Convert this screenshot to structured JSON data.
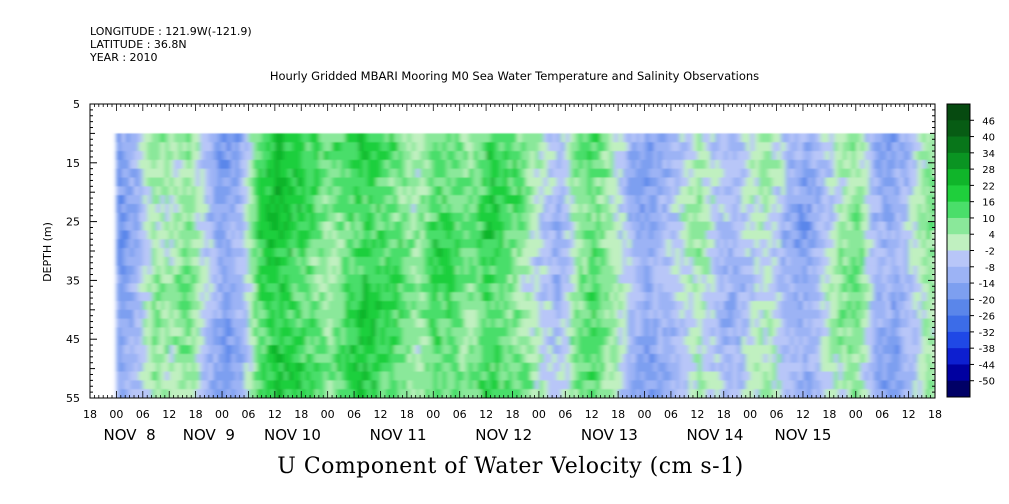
{
  "header": {
    "longitude": "LONGITUDE : 121.9W(-121.9)",
    "latitude": "LATITUDE : 36.8N",
    "year": "YEAR : 2010"
  },
  "chart_data": {
    "type": "heatmap",
    "title": "Hourly Gridded MBARI Mooring M0 Sea Water Temperature and Salinity Observations",
    "xlabel": "U Component of Water Velocity (cm s-1)",
    "ylabel": "DEPTH (m)",
    "ylim": [
      5,
      55
    ],
    "y_ticks": [
      5,
      15,
      25,
      35,
      45,
      55
    ],
    "y_tick_labels": [
      "5",
      "15",
      "25",
      "35",
      "45",
      "55"
    ],
    "data_depth_range": [
      10,
      55
    ],
    "x_hour_start": -6,
    "x_hour_end": 186,
    "x_hour_ticks": [
      "18",
      "00",
      "06",
      "12",
      "18",
      "00",
      "06",
      "12",
      "18",
      "00",
      "06",
      "12",
      "18",
      "00",
      "06",
      "12",
      "18",
      "00",
      "06",
      "12",
      "18",
      "00",
      "06",
      "12",
      "18",
      "00",
      "06",
      "12",
      "18",
      "00",
      "06",
      "12",
      "18"
    ],
    "x_day_labels": [
      "NOV  8",
      "NOV  9",
      "NOV 10",
      "NOV 11",
      "NOV 12",
      "NOV 13",
      "NOV 14",
      "NOV 15"
    ],
    "x_day_label_hours": [
      3,
      21,
      40,
      64,
      88,
      112,
      136,
      156
    ],
    "colorbar_levels": [
      -50,
      -44,
      -38,
      -32,
      -26,
      -20,
      -14,
      -8,
      -2,
      4,
      10,
      16,
      22,
      28,
      34,
      40,
      46
    ],
    "colorbar_labels": [
      "46",
      "40",
      "34",
      "28",
      "22",
      "16",
      "10",
      "4",
      "-2",
      "-8",
      "-14",
      "-20",
      "-26",
      "-32",
      "-38",
      "-44",
      "-50"
    ],
    "colorbar_colors": [
      "#000066",
      "#0000a0",
      "#0d1fd0",
      "#1f48e6",
      "#3c6ce8",
      "#5a86ea",
      "#7d9ff0",
      "#9cb3f5",
      "#b8c6f8",
      "#c0f0c0",
      "#8ae89a",
      "#4ade6a",
      "#1fcf3c",
      "#10b52a",
      "#0a9422",
      "#08761a",
      "#075c14",
      "#064a10"
    ],
    "u_velocity_cm_s_by_time_block": [
      {
        "hour": 0,
        "u": -18
      },
      {
        "hour": 4,
        "u": -10
      },
      {
        "hour": 8,
        "u": 6
      },
      {
        "hour": 12,
        "u": 2
      },
      {
        "hour": 16,
        "u": 8
      },
      {
        "hour": 20,
        "u": -6
      },
      {
        "hour": 24,
        "u": -16
      },
      {
        "hour": 28,
        "u": -10
      },
      {
        "hour": 32,
        "u": 14
      },
      {
        "hour": 36,
        "u": 20
      },
      {
        "hour": 40,
        "u": 16
      },
      {
        "hour": 44,
        "u": 12
      },
      {
        "hour": 48,
        "u": 6
      },
      {
        "hour": 52,
        "u": 12
      },
      {
        "hour": 56,
        "u": 18
      },
      {
        "hour": 60,
        "u": 14
      },
      {
        "hour": 64,
        "u": 10
      },
      {
        "hour": 68,
        "u": 4
      },
      {
        "hour": 72,
        "u": 14
      },
      {
        "hour": 76,
        "u": 12
      },
      {
        "hour": 80,
        "u": 8
      },
      {
        "hour": 84,
        "u": 16
      },
      {
        "hour": 88,
        "u": 12
      },
      {
        "hour": 92,
        "u": 6
      },
      {
        "hour": 96,
        "u": -2
      },
      {
        "hour": 100,
        "u": -10
      },
      {
        "hour": 104,
        "u": 6
      },
      {
        "hour": 108,
        "u": 12
      },
      {
        "hour": 112,
        "u": 4
      },
      {
        "hour": 116,
        "u": -8
      },
      {
        "hour": 120,
        "u": -14
      },
      {
        "hour": 124,
        "u": -10
      },
      {
        "hour": 128,
        "u": -4
      },
      {
        "hour": 132,
        "u": 4
      },
      {
        "hour": 136,
        "u": -6
      },
      {
        "hour": 140,
        "u": -10
      },
      {
        "hour": 144,
        "u": -2
      },
      {
        "hour": 148,
        "u": 2
      },
      {
        "hour": 152,
        "u": -10
      },
      {
        "hour": 156,
        "u": -14
      },
      {
        "hour": 160,
        "u": -6
      },
      {
        "hour": 164,
        "u": 4
      },
      {
        "hour": 168,
        "u": 8
      },
      {
        "hour": 172,
        "u": -10
      },
      {
        "hour": 176,
        "u": -14
      },
      {
        "hour": 180,
        "u": -6
      },
      {
        "hour": 184,
        "u": 6
      }
    ]
  }
}
